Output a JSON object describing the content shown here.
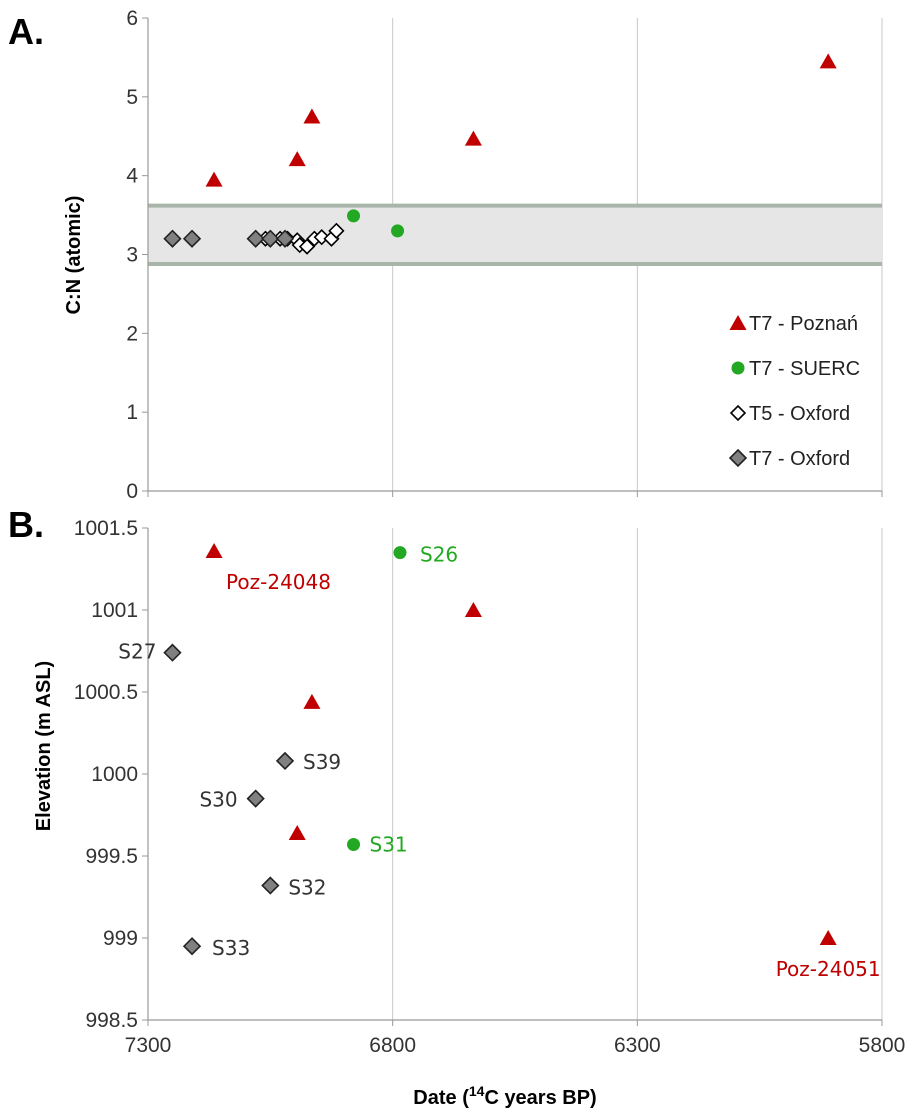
{
  "chart_data": [
    {
      "panel": "A.",
      "type": "scatter",
      "title": "",
      "xlabel": "Date (14C years BP)",
      "ylabel": "C:N (atomic)",
      "xlim": [
        7300,
        5800
      ],
      "x_reversed": true,
      "xticks": [
        "7300",
        "6800",
        "6300",
        "5800"
      ],
      "ylim": [
        0,
        6
      ],
      "yticks": [
        "0",
        "1",
        "2",
        "3",
        "4",
        "5",
        "6"
      ],
      "grid": "vertical",
      "legend": "right",
      "band": {
        "from": 2.88,
        "to": 3.62
      },
      "series": [
        {
          "name": "T7 - Poznań",
          "marker": "triangle",
          "color": "#c00000",
          "points": [
            [
              7165,
              3.95
            ],
            [
              6995,
              4.21
            ],
            [
              6965,
              4.75
            ],
            [
              6635,
              4.47
            ],
            [
              5910,
              5.45
            ]
          ]
        },
        {
          "name": "T7 - SUERC",
          "marker": "circle",
          "color": "#22a822",
          "points": [
            [
              6880,
              3.49
            ],
            [
              6790,
              3.3
            ]
          ]
        },
        {
          "name": "T5 - Oxford",
          "marker": "diamond-open",
          "color": "#000000",
          "points": [
            [
              7060,
              3.2
            ],
            [
              7030,
              3.2
            ],
            [
              7015,
              3.2
            ],
            [
              6995,
              3.18
            ],
            [
              6990,
              3.12
            ],
            [
              6975,
              3.1
            ],
            [
              6960,
              3.2
            ],
            [
              6945,
              3.22
            ],
            [
              6925,
              3.2
            ],
            [
              6915,
              3.3
            ]
          ]
        },
        {
          "name": "T7 - Oxford",
          "marker": "diamond-filled",
          "color": "#808080",
          "points": [
            [
              7250,
              3.2
            ],
            [
              7210,
              3.2
            ],
            [
              7080,
              3.2
            ],
            [
              7050,
              3.2
            ],
            [
              7020,
              3.2
            ]
          ]
        }
      ]
    },
    {
      "panel": "B.",
      "type": "scatter",
      "title": "",
      "xlabel": "Date (14C years BP)",
      "ylabel": "Elevation (m ASL)",
      "xlim": [
        7300,
        5800
      ],
      "x_reversed": true,
      "xticks": [
        "7300",
        "6800",
        "6300",
        "5800"
      ],
      "ylim": [
        998.5,
        1001.5
      ],
      "yticks": [
        "998.5",
        "999",
        "999.5",
        "1000",
        "1000.5",
        "1001",
        "1001.5"
      ],
      "grid": "vertical",
      "legend": "none",
      "series": [
        {
          "name": "T7 - Poznań",
          "marker": "triangle",
          "color": "#c00000",
          "points": [
            {
              "x": 7165,
              "y": 1001.36,
              "label": "Poz-24048"
            },
            {
              "x": 6635,
              "y": 1001.0
            },
            {
              "x": 6965,
              "y": 1000.44
            },
            {
              "x": 6995,
              "y": 999.64
            },
            {
              "x": 5910,
              "y": 999.0,
              "label": "Poz-24051"
            }
          ]
        },
        {
          "name": "T7 - SUERC",
          "marker": "circle",
          "color": "#22a822",
          "points": [
            {
              "x": 6785,
              "y": 1001.35,
              "label": "S26"
            },
            {
              "x": 6880,
              "y": 999.57,
              "label": "S31"
            }
          ]
        },
        {
          "name": "T7 - Oxford",
          "marker": "diamond-filled",
          "color": "#808080",
          "points": [
            {
              "x": 7250,
              "y": 1000.74,
              "label": "S27"
            },
            {
              "x": 7020,
              "y": 1000.08,
              "label": "S39"
            },
            {
              "x": 7080,
              "y": 999.85,
              "label": "S30"
            },
            {
              "x": 7050,
              "y": 999.32,
              "label": "S32"
            },
            {
              "x": 7210,
              "y": 998.95,
              "label": "S33"
            }
          ]
        }
      ]
    }
  ]
}
